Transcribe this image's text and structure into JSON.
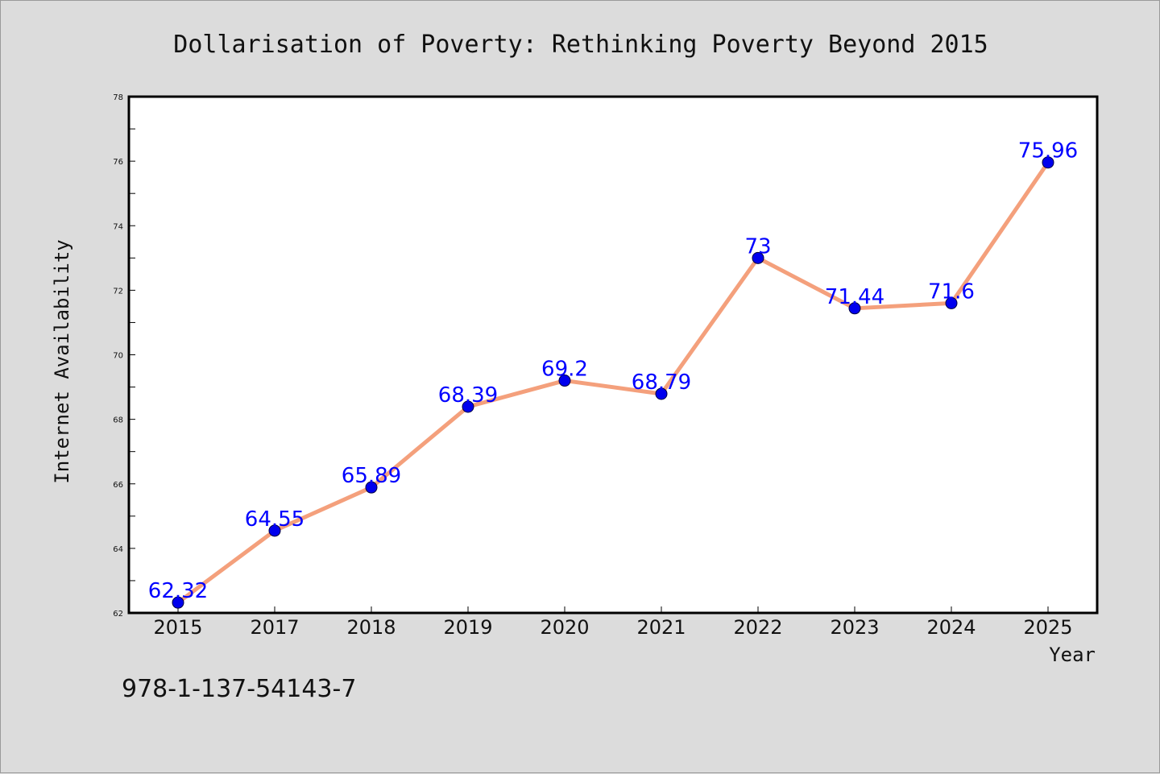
{
  "chart_data": {
    "type": "line",
    "title": "Dollarisation of Poverty: Rethinking Poverty Beyond 2015",
    "xlabel": "Year",
    "ylabel": "Internet Availability",
    "categories": [
      "2015",
      "2017",
      "2018",
      "2019",
      "2020",
      "2021",
      "2022",
      "2023",
      "2024",
      "2025"
    ],
    "series": [
      {
        "values": [
          62.32,
          64.55,
          65.89,
          68.39,
          69.2,
          68.79,
          73,
          71.44,
          71.6,
          75.96
        ],
        "labels": [
          "62.32",
          "64.55",
          "65.89",
          "68.39",
          "69.2",
          "68.79",
          "73",
          "71.44",
          "71.6",
          "75.96"
        ]
      }
    ],
    "ylim": [
      62,
      78
    ],
    "yticks": [
      "62",
      "64",
      "66",
      "68",
      "70",
      "72",
      "74",
      "76",
      "78"
    ],
    "grid": false,
    "legend": "none",
    "colors": {
      "line": "#f4a07c",
      "marker": "#0000ee",
      "data_label": "#0000ff",
      "plot_background": "#ffffff",
      "figure_background": "#dcdcdc"
    }
  },
  "footer": {
    "isbn": "978-1-137-54143-7"
  }
}
